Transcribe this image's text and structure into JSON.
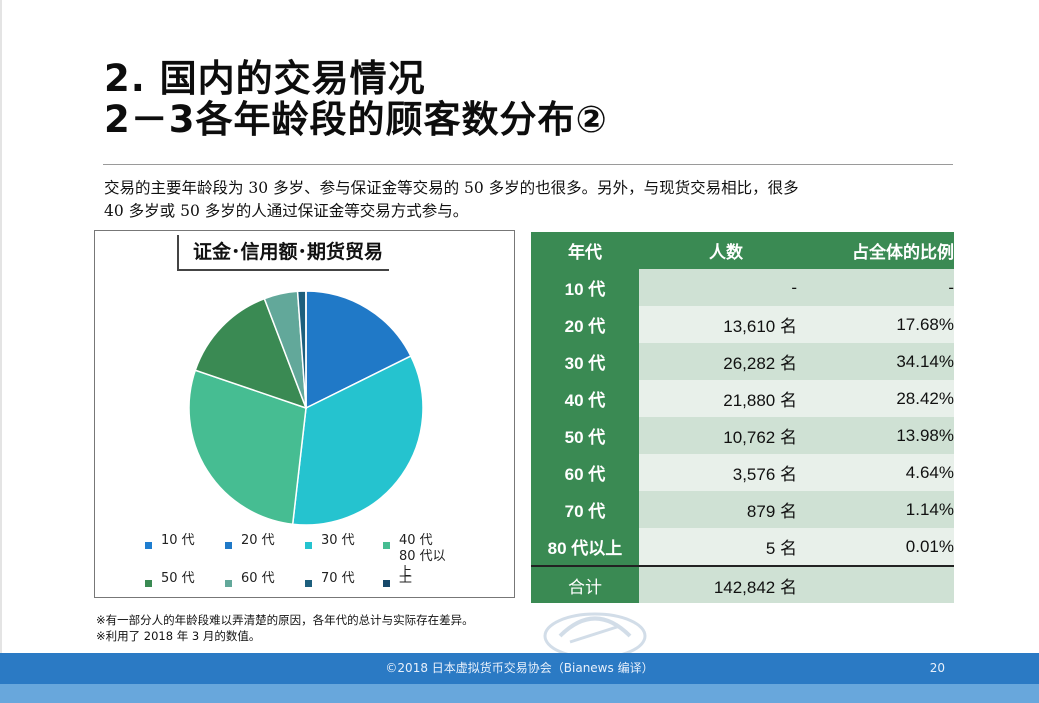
{
  "slide": {
    "title_line1": "2. 国内的交易情况",
    "title_line2": "2－3各年龄段的顾客数分布②",
    "intro_line1": "交易的主要年龄段为 30 多岁、参与保证金等交易的 50 多岁的也很多。另外，与现货交易相比，很多",
    "intro_line2": "40 多岁或 50 多岁的人通过保证金等交易方式参与。"
  },
  "chart_data": {
    "type": "pie",
    "title": "证金･信用额･期货贸易",
    "categories": [
      "10 代",
      "20 代",
      "30 代",
      "40 代",
      "50 代",
      "60 代",
      "70 代",
      "80 代以上"
    ],
    "values": [
      0,
      17.68,
      34.14,
      28.42,
      13.98,
      4.64,
      1.14,
      0.01
    ],
    "colors": [
      "#1f7ed0",
      "#2079c7",
      "#25c3cf",
      "#46bd92",
      "#3a8a53",
      "#62a89a",
      "#1d5f7d",
      "#17496a"
    ],
    "legend_labels": [
      "10 代",
      "20 代",
      "30 代",
      "40 代\n80 代以上",
      "50 代",
      "60 代",
      "70 代",
      "上"
    ],
    "legend_placement": "bottom"
  },
  "table": {
    "headers": [
      "年代",
      "人数",
      "占全体的比例"
    ],
    "rows": [
      {
        "era": "10 代",
        "count": "-",
        "pct": "-"
      },
      {
        "era": "20 代",
        "count": "13,610 名",
        "pct": "17.68%"
      },
      {
        "era": "30 代",
        "count": "26,282 名",
        "pct": "34.14%"
      },
      {
        "era": "40 代",
        "count": "21,880 名",
        "pct": "28.42%"
      },
      {
        "era": "50 代",
        "count": "10,762 名",
        "pct": "13.98%"
      },
      {
        "era": "60 代",
        "count": "3,576 名",
        "pct": "4.64%"
      },
      {
        "era": "70 代",
        "count": "879 名",
        "pct": "1.14%"
      },
      {
        "era": "80 代以上",
        "count": "5 名",
        "pct": "0.01%"
      }
    ],
    "total": {
      "era": "合计",
      "count": "142,842 名",
      "pct": ""
    }
  },
  "notes": {
    "note1": "※有一部分人的年龄段难以弄清楚的原因，各年代的总计与实际存在差异。",
    "note2": "※利用了 2018 年 3 月的数值。"
  },
  "footer": {
    "text": "©2018 日本虚拟货币交易协会（Bianews 编译）",
    "page_number": "20"
  }
}
